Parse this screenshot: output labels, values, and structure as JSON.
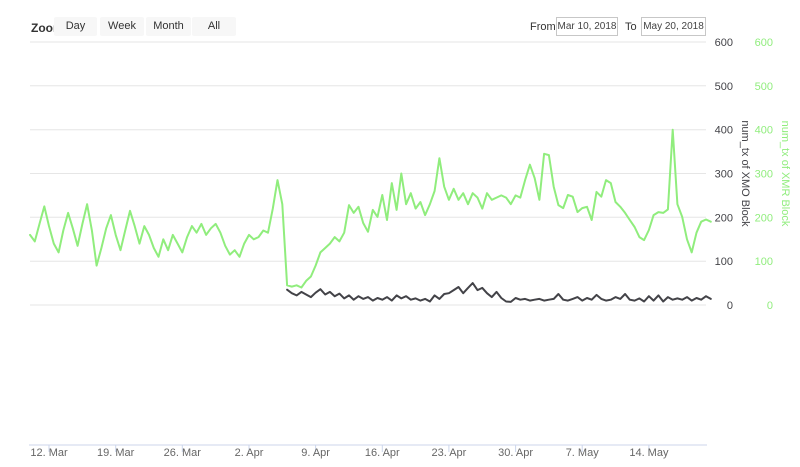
{
  "range_selector": {
    "zoom_label": "Zoom",
    "buttons": [
      "Day",
      "Week",
      "Month",
      "All"
    ],
    "from_label": "From",
    "from_value": "Mar 10, 2018",
    "to_label": "To",
    "to_value": "May 20, 2018"
  },
  "chart_data": {
    "type": "line",
    "title": "",
    "xlabel": "",
    "grid_color": "#e6e6e6",
    "x_axis_line_color": "#ccd6eb",
    "x_label_color": "#666666",
    "x_axis": {
      "start": "Mar 10, 2018",
      "end": "May 20, 2018",
      "span_days": 71,
      "ticks": [
        {
          "label": "12. Mar",
          "day": 2
        },
        {
          "label": "19. Mar",
          "day": 9
        },
        {
          "label": "26. Mar",
          "day": 16
        },
        {
          "label": "2. Apr",
          "day": 23
        },
        {
          "label": "9. Apr",
          "day": 30
        },
        {
          "label": "16. Apr",
          "day": 37
        },
        {
          "label": "23. Apr",
          "day": 44
        },
        {
          "label": "30. Apr",
          "day": 51
        },
        {
          "label": "7. May",
          "day": 58
        },
        {
          "label": "14. May",
          "day": 65
        }
      ]
    },
    "ylim": [
      0,
      600
    ],
    "y_axes": [
      {
        "title": "num_tx of XMO Block",
        "color": "#434348",
        "ticks": [
          0,
          100,
          200,
          300,
          400,
          500,
          600
        ]
      },
      {
        "title": "num_tx of XMR Block",
        "color": "#90ed7d",
        "ticks": [
          0,
          100,
          200,
          300,
          400,
          500,
          600
        ]
      }
    ],
    "series": [
      {
        "name": "num_tx of XMR Block",
        "color": "#90ed7d",
        "start_day_offset": 0,
        "points_per_day": 2,
        "values": [
          160,
          145,
          185,
          225,
          180,
          140,
          120,
          170,
          210,
          175,
          135,
          185,
          230,
          170,
          90,
          130,
          175,
          205,
          160,
          125,
          170,
          215,
          180,
          140,
          180,
          160,
          130,
          110,
          150,
          125,
          160,
          140,
          120,
          155,
          180,
          165,
          185,
          160,
          175,
          185,
          165,
          135,
          115,
          125,
          110,
          140,
          160,
          150,
          155,
          170,
          165,
          220,
          285,
          230,
          45,
          42,
          45,
          40,
          55,
          65,
          90,
          120,
          130,
          140,
          155,
          145,
          165,
          228,
          210,
          224,
          187,
          167,
          217,
          201,
          251,
          194,
          278,
          217,
          300,
          230,
          255,
          220,
          235,
          205,
          230,
          260,
          335,
          270,
          240,
          265,
          240,
          255,
          230,
          255,
          245,
          220,
          255,
          240,
          245,
          250,
          245,
          230,
          250,
          245,
          285,
          320,
          290,
          240,
          345,
          342,
          270,
          228,
          221,
          251,
          247,
          212,
          221,
          224,
          194,
          258,
          247,
          285,
          278,
          235,
          224,
          210,
          194,
          178,
          155,
          148,
          171,
          205,
          212,
          210,
          218,
          400,
          230,
          201,
          150,
          120,
          165,
          190,
          195,
          190
        ]
      },
      {
        "name": "num_tx of XMO Block",
        "color": "#434348",
        "start_day_offset": 27,
        "points_per_day": 2,
        "values": [
          35,
          27,
          22,
          30,
          24,
          18,
          28,
          36,
          24,
          30,
          20,
          26,
          15,
          22,
          12,
          20,
          14,
          18,
          10,
          16,
          12,
          18,
          10,
          22,
          15,
          20,
          12,
          15,
          10,
          14,
          8,
          22,
          14,
          25,
          27,
          34,
          41,
          27,
          39,
          50,
          34,
          39,
          27,
          18,
          30,
          16,
          8,
          7,
          16,
          12,
          14,
          10,
          12,
          14,
          10,
          12,
          14,
          25,
          12,
          10,
          14,
          18,
          10,
          16,
          12,
          23,
          14,
          10,
          12,
          18,
          14,
          25,
          12,
          10,
          15,
          8,
          20,
          10,
          22,
          8,
          18,
          12,
          15,
          12,
          18,
          10,
          16,
          12,
          20,
          14
        ]
      }
    ],
    "legend": "none"
  }
}
